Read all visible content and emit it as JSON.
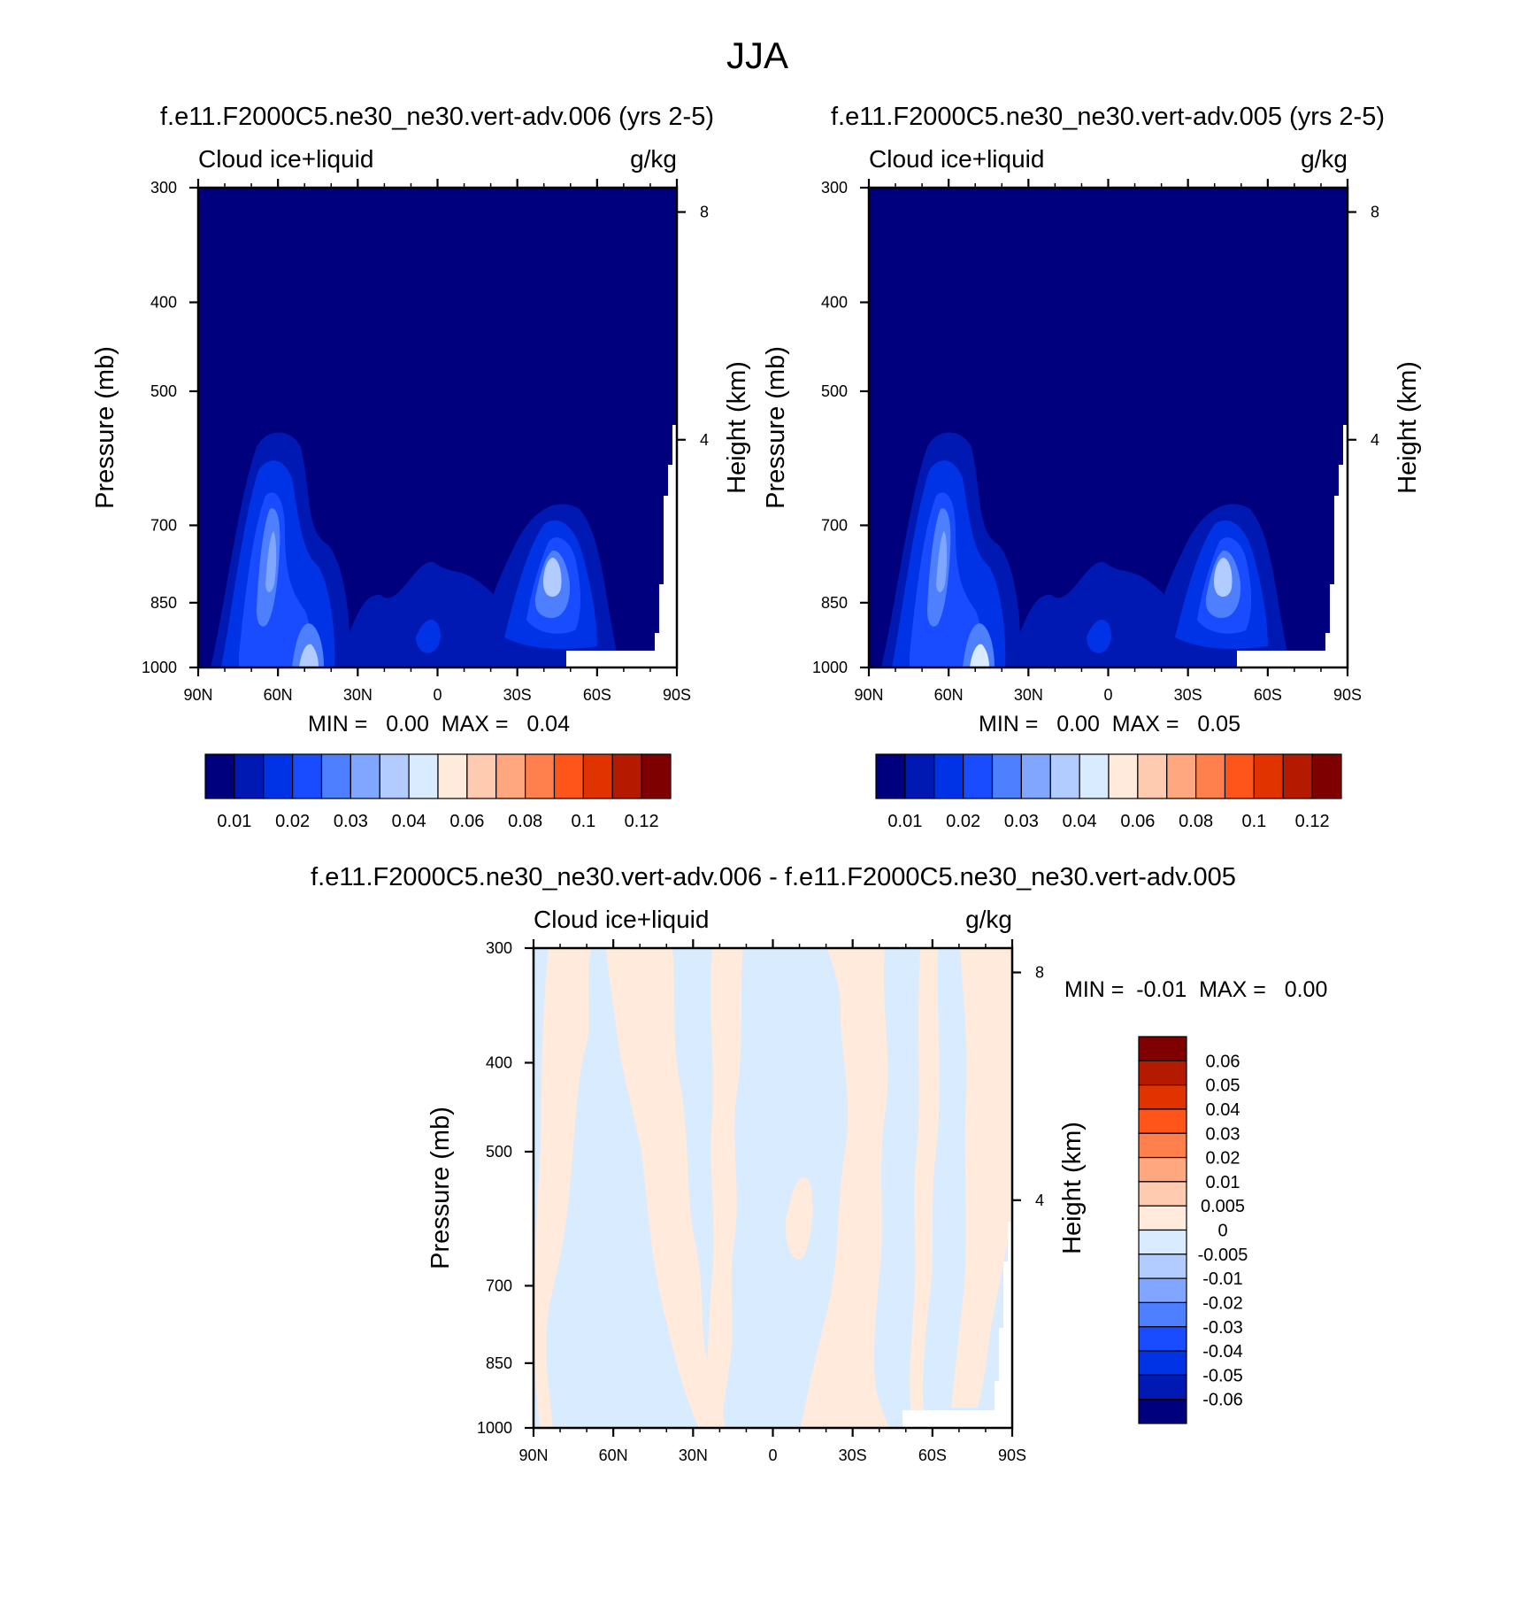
{
  "figure": {
    "title": "JJA"
  },
  "colors": {
    "abs_scale": [
      "#00007f",
      "#0019b3",
      "#0033e5",
      "#1a4cff",
      "#4d7fff",
      "#80a6ff",
      "#b3ccff",
      "#d9ebff",
      "#ffeadb",
      "#ffcbb0",
      "#ffa880",
      "#ff7f4d",
      "#ff551a",
      "#e03300",
      "#b31a00",
      "#7f0000"
    ],
    "diff_scale": [
      "#7f0000",
      "#b31a00",
      "#e03300",
      "#ff551a",
      "#ff7f4d",
      "#ffa880",
      "#ffcbb0",
      "#ffeadb",
      "#d9ebff",
      "#b3ccff",
      "#80a6ff",
      "#4d7fff",
      "#1a4cff",
      "#0033e5",
      "#0019b3",
      "#00007f"
    ],
    "axis": "#000000",
    "missing": "#ffffff"
  },
  "chart_data": [
    {
      "type": "heatmap",
      "id": "panel-006",
      "title": "f.e11.F2000C5.ne30_ne30.vert-adv.006 (yrs 2-5)",
      "variable_label": "Cloud ice+liquid",
      "units_label": "g/kg",
      "xlabel": "",
      "ylabel": "Pressure (mb)",
      "y2label": "Height (km)",
      "x_ticks": [
        "90N",
        "60N",
        "30N",
        "0",
        "30S",
        "60S",
        "90S"
      ],
      "x_tick_values": [
        90,
        60,
        30,
        0,
        -30,
        -60,
        -90
      ],
      "y_ticks": [
        "300",
        "400",
        "500",
        "700",
        "850",
        "1000"
      ],
      "y_tick_values": [
        300,
        400,
        500,
        700,
        850,
        1000
      ],
      "y2_ticks": [
        "8",
        "4"
      ],
      "y2_tick_values": [
        8,
        4
      ],
      "xlim": [
        90,
        -90
      ],
      "ylim": [
        1000,
        300
      ],
      "stats": "MIN =   0.00  MAX =   0.04",
      "colorbar_labels": [
        "0.01",
        "0.02",
        "0.03",
        "0.04",
        "0.06",
        "0.08",
        "0.1",
        "0.12"
      ],
      "colorbar_levels": [
        0.005,
        0.01,
        0.015,
        0.02,
        0.025,
        0.03,
        0.035,
        0.04,
        0.05,
        0.06,
        0.07,
        0.08,
        0.09,
        0.1,
        0.11,
        0.12
      ],
      "features": [
        {
          "lat": 61,
          "p": 800,
          "value": 0.035
        },
        {
          "lat": 41,
          "p": 980,
          "value": 0.04
        },
        {
          "lat": -43,
          "p": 845,
          "value": 0.035
        },
        {
          "lat": 5,
          "p": 920,
          "value": 0.02
        }
      ]
    },
    {
      "type": "heatmap",
      "id": "panel-005",
      "title": "f.e11.F2000C5.ne30_ne30.vert-adv.005 (yrs 2-5)",
      "variable_label": "Cloud ice+liquid",
      "units_label": "g/kg",
      "xlabel": "",
      "ylabel": "Pressure (mb)",
      "y2label": "Height (km)",
      "x_ticks": [
        "90N",
        "60N",
        "30N",
        "0",
        "30S",
        "60S",
        "90S"
      ],
      "x_tick_values": [
        90,
        60,
        30,
        0,
        -30,
        -60,
        -90
      ],
      "y_ticks": [
        "300",
        "400",
        "500",
        "700",
        "850",
        "1000"
      ],
      "y_tick_values": [
        300,
        400,
        500,
        700,
        850,
        1000
      ],
      "y2_ticks": [
        "8",
        "4"
      ],
      "y2_tick_values": [
        8,
        4
      ],
      "xlim": [
        90,
        -90
      ],
      "ylim": [
        1000,
        300
      ],
      "stats": "MIN =   0.00  MAX =   0.05",
      "colorbar_labels": [
        "0.01",
        "0.02",
        "0.03",
        "0.04",
        "0.06",
        "0.08",
        "0.1",
        "0.12"
      ],
      "colorbar_levels": [
        0.005,
        0.01,
        0.015,
        0.02,
        0.025,
        0.03,
        0.035,
        0.04,
        0.05,
        0.06,
        0.07,
        0.08,
        0.09,
        0.1,
        0.11,
        0.12
      ],
      "features": [
        {
          "lat": 61,
          "p": 800,
          "value": 0.035
        },
        {
          "lat": 41,
          "p": 980,
          "value": 0.04
        },
        {
          "lat": -43,
          "p": 845,
          "value": 0.035
        },
        {
          "lat": 5,
          "p": 920,
          "value": 0.02
        }
      ]
    },
    {
      "type": "heatmap",
      "id": "panel-diff",
      "title": "f.e11.F2000C5.ne30_ne30.vert-adv.006 - f.e11.F2000C5.ne30_ne30.vert-adv.005",
      "variable_label": "Cloud ice+liquid",
      "units_label": "g/kg",
      "xlabel": "",
      "ylabel": "Pressure (mb)",
      "y2label": "Height (km)",
      "x_ticks": [
        "90N",
        "60N",
        "30N",
        "0",
        "30S",
        "60S",
        "90S"
      ],
      "x_tick_values": [
        90,
        60,
        30,
        0,
        -30,
        -60,
        -90
      ],
      "y_ticks": [
        "300",
        "400",
        "500",
        "700",
        "850",
        "1000"
      ],
      "y_tick_values": [
        300,
        400,
        500,
        700,
        850,
        1000
      ],
      "y2_ticks": [
        "8",
        "4"
      ],
      "y2_tick_values": [
        8,
        4
      ],
      "xlim": [
        90,
        -90
      ],
      "ylim": [
        1000,
        300
      ],
      "stats": "MIN =  -0.01  MAX =   0.00",
      "colorbar_labels": [
        "0.06",
        "0.05",
        "0.04",
        "0.03",
        "0.02",
        "0.01",
        "0.005",
        "0",
        "-0.005",
        "-0.01",
        "-0.02",
        "-0.03",
        "-0.04",
        "-0.05",
        "-0.06"
      ],
      "colorbar_levels": [
        0.06,
        0.05,
        0.04,
        0.03,
        0.02,
        0.01,
        0.005,
        0,
        -0.005,
        -0.01,
        -0.02,
        -0.03,
        -0.04,
        -0.05,
        -0.06
      ],
      "positive_bands_lat": [
        [
          78,
          72
        ],
        [
          62,
          52
        ],
        [
          42,
          33
        ],
        [
          2,
          -4
        ],
        [
          -12,
          -20
        ],
        [
          -28,
          -42
        ],
        [
          -62,
          -78
        ]
      ]
    }
  ]
}
